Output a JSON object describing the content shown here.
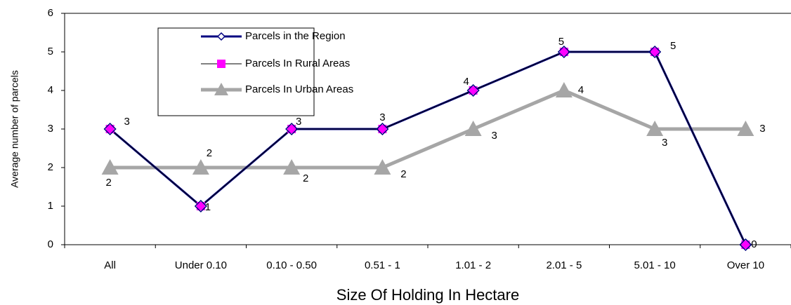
{
  "chart_data": {
    "type": "line",
    "x_label": "Size Of Holding In Hectare",
    "y_label": "Average number of parcels",
    "categories": [
      "All",
      "Under 0.10",
      "0.10 - 0.50",
      "0.51 - 1",
      "1.01 - 2",
      "2.01 - 5",
      "5.01 - 10",
      "Over 10"
    ],
    "series": [
      {
        "name": "Parcels in the Region",
        "color": "#000080",
        "marker": "diamond",
        "values": [
          3,
          1,
          3,
          3,
          4,
          5,
          5,
          0
        ]
      },
      {
        "name": "Parcels In Rural Areas",
        "color": "#ff00ff",
        "marker": "square",
        "values": [
          3,
          1,
          3,
          3,
          4,
          5,
          5,
          0
        ]
      },
      {
        "name": "Parcels In  Urban Areas",
        "color": "#a6a6a6",
        "marker": "triangle",
        "values": [
          2,
          2,
          2,
          2,
          3,
          4,
          3,
          3
        ]
      }
    ],
    "ylim": [
      0,
      6
    ],
    "yticks": [
      0,
      1,
      2,
      3,
      4,
      5,
      6
    ],
    "grid": false,
    "legend": "top-left"
  }
}
